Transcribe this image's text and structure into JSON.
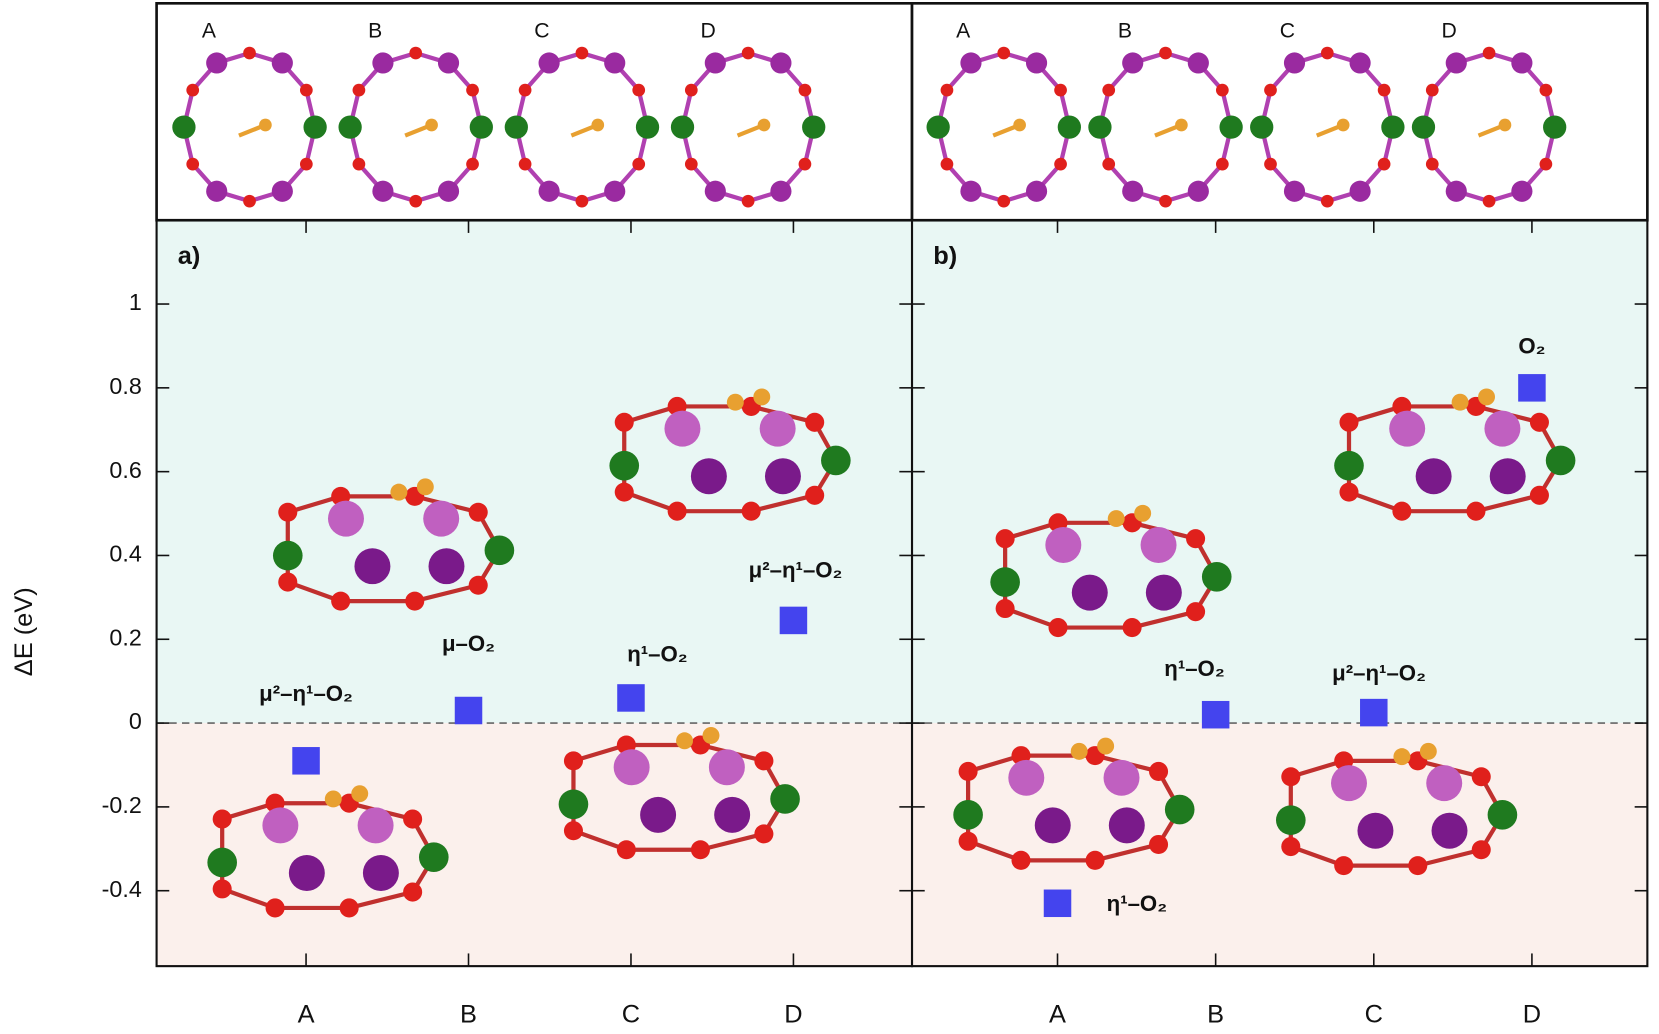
{
  "chart_data": [
    {
      "type": "scatter",
      "panel_label": "a)",
      "ylabel": "ΔE (eV)",
      "categories": [
        "A",
        "B",
        "C",
        "D"
      ],
      "inset_labels": [
        "A",
        "B",
        "C",
        "D"
      ],
      "values": [
        -0.09,
        0.03,
        0.06,
        0.245
      ],
      "point_labels": [
        "μ²–η¹–O₂",
        "μ–O₂",
        "η¹–O₂",
        "μ²–η¹–O₂"
      ],
      "color": "#4444ee",
      "reference_line": 0,
      "ylim": [
        -0.58,
        1.2
      ],
      "yticks": [
        -0.4,
        -0.2,
        0,
        0.2,
        0.4,
        0.6,
        0.8,
        1
      ]
    },
    {
      "type": "scatter",
      "panel_label": "b)",
      "categories": [
        "A",
        "B",
        "C",
        "D"
      ],
      "inset_labels": [
        "A",
        "B",
        "C",
        "D"
      ],
      "values": [
        -0.43,
        0.02,
        0.025,
        0.8
      ],
      "point_labels": [
        "η¹–O₂",
        "η¹–O₂",
        "μ²–η¹–O₂",
        "O₂"
      ],
      "color": "#4444ee",
      "reference_line": 0,
      "ylim": [
        -0.58,
        1.2
      ],
      "yticks": [
        -0.4,
        -0.2,
        0,
        0.2,
        0.4,
        0.6,
        0.8,
        1
      ]
    }
  ]
}
